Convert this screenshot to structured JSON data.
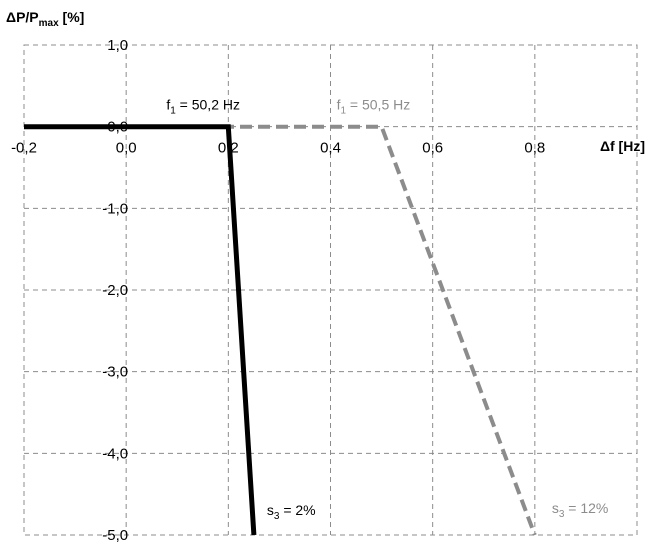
{
  "chart_data": {
    "type": "line",
    "xlabel_main": "Δf [Hz]",
    "ylabel_main": "ΔP/P",
    "ylabel_sub": "max",
    "ylabel_unit": " [%]",
    "xlim": [
      -0.2,
      1.0
    ],
    "ylim": [
      -5.0,
      1.0
    ],
    "x_ticks": [
      {
        "value": -0.2,
        "label": "-0,2"
      },
      {
        "value": 0.0,
        "label": "0,0"
      },
      {
        "value": 0.2,
        "label": "0,2"
      },
      {
        "value": 0.4,
        "label": "0,4"
      },
      {
        "value": 0.6,
        "label": "0,6"
      },
      {
        "value": 0.8,
        "label": "0,8"
      }
    ],
    "y_ticks": [
      {
        "value": 1.0,
        "label": "1,0"
      },
      {
        "value": 0.0,
        "label": "0,0"
      },
      {
        "value": -1.0,
        "label": "-1,0"
      },
      {
        "value": -2.0,
        "label": "-2,0"
      },
      {
        "value": -3.0,
        "label": "-3,0"
      },
      {
        "value": -4.0,
        "label": "-4,0"
      },
      {
        "value": -5.0,
        "label": "-5,0"
      }
    ],
    "grid": true,
    "series": [
      {
        "style": "solid",
        "color": "#000000",
        "points": [
          [
            -0.2,
            0.0
          ],
          [
            0.2,
            0.0
          ],
          [
            0.25,
            -5.0
          ]
        ],
        "label_top": {
          "pre": "f",
          "sub": "1",
          "post": " = 50,2 Hz"
        },
        "label_bottom": {
          "pre": "s",
          "sub": "3",
          "post": " = 2%"
        }
      },
      {
        "style": "dashed",
        "color": "#8c8c8c",
        "points": [
          [
            -0.2,
            0.0
          ],
          [
            0.5,
            0.0
          ],
          [
            0.8,
            -5.0
          ]
        ],
        "label_top": {
          "pre": "f",
          "sub": "1",
          "post": " = 50,5 Hz"
        },
        "label_bottom": {
          "pre": "s",
          "sub": "3",
          "post": " = 12%"
        }
      }
    ]
  }
}
